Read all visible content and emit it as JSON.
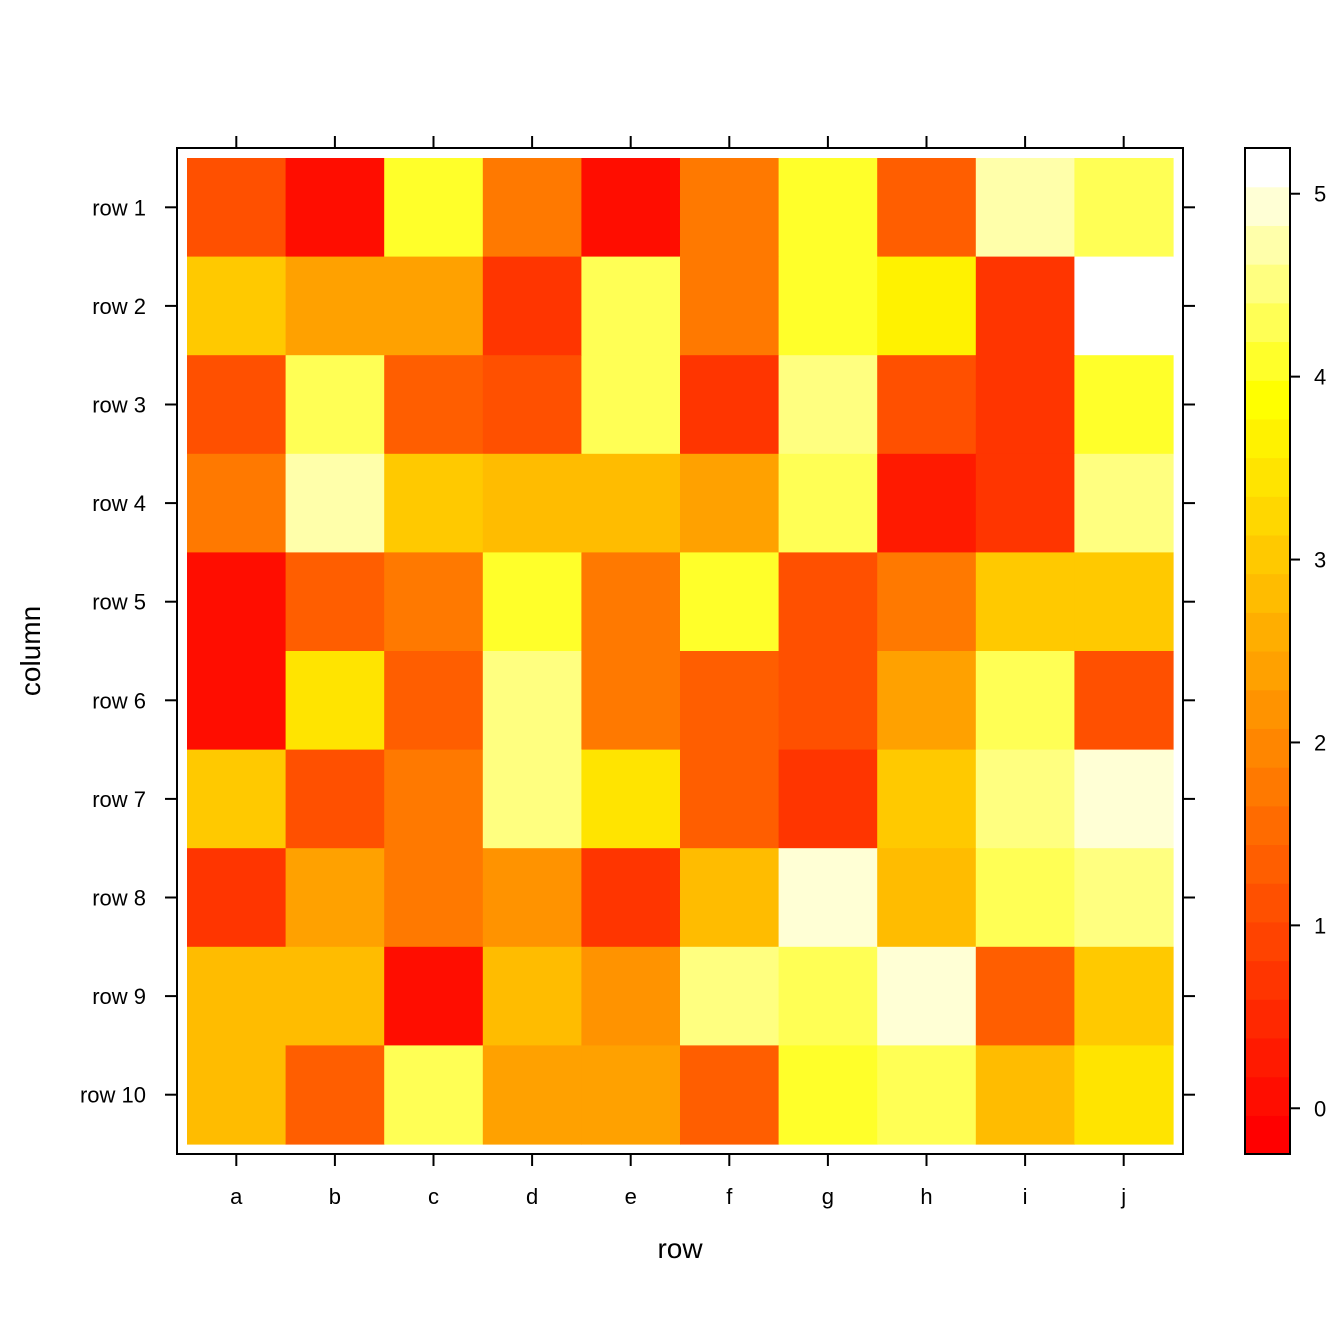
{
  "chart_data": {
    "type": "heatmap",
    "title": "",
    "xlabel": "row",
    "ylabel": "column",
    "x_categories": [
      "a",
      "b",
      "c",
      "d",
      "e",
      "f",
      "g",
      "h",
      "i",
      "j"
    ],
    "y_categories": [
      "row 1",
      "row 2",
      "row 3",
      "row 4",
      "row 5",
      "row 6",
      "row 7",
      "row 8",
      "row 9",
      "row 10"
    ],
    "values": [
      [
        1.1,
        0.1,
        4.0,
        1.8,
        0.1,
        1.8,
        4.0,
        1.4,
        4.7,
        4.3
      ],
      [
        3.1,
        2.4,
        2.4,
        0.7,
        4.3,
        1.8,
        4.0,
        3.6,
        0.6,
        5.2
      ],
      [
        1.2,
        4.3,
        1.4,
        1.1,
        4.3,
        0.6,
        4.6,
        1.1,
        0.6,
        4.0
      ],
      [
        1.8,
        4.8,
        3.1,
        2.8,
        2.8,
        2.4,
        4.3,
        0.2,
        0.6,
        4.6
      ],
      [
        0.1,
        1.4,
        1.8,
        4.0,
        1.8,
        4.0,
        1.1,
        1.8,
        3.1,
        3.1
      ],
      [
        0.1,
        3.4,
        1.4,
        4.6,
        1.8,
        1.4,
        1.1,
        2.4,
        4.3,
        1.1
      ],
      [
        3.1,
        1.1,
        1.8,
        4.6,
        3.4,
        1.4,
        0.6,
        3.1,
        4.6,
        5.0
      ],
      [
        0.6,
        2.4,
        1.8,
        2.1,
        0.6,
        2.8,
        5.0,
        2.8,
        4.3,
        4.6
      ],
      [
        2.8,
        2.8,
        0.1,
        2.8,
        2.1,
        4.6,
        4.3,
        5.0,
        1.4,
        3.1
      ],
      [
        2.8,
        1.4,
        4.3,
        2.4,
        2.4,
        1.4,
        4.0,
        4.3,
        2.8,
        3.4
      ]
    ],
    "zlim": [
      -0.25,
      5.25
    ],
    "colorbar": {
      "ticks": [
        0,
        1,
        2,
        3,
        4,
        5
      ],
      "tick_labels": [
        "0",
        "1",
        "2",
        "3",
        "4",
        "5"
      ],
      "colors": [
        "#FF0000",
        "#FF0D00",
        "#FF1A00",
        "#FF2800",
        "#FF3500",
        "#FF4300",
        "#FF5000",
        "#FF5E00",
        "#FF6B00",
        "#FF7900",
        "#FF8600",
        "#FF9300",
        "#FFA100",
        "#FFAE00",
        "#FFBC00",
        "#FFC900",
        "#FFD700",
        "#FFE400",
        "#FFF200",
        "#FFFF00",
        "#FFFF2A",
        "#FFFF55",
        "#FFFF80",
        "#FFFFAA",
        "#FFFFD5",
        "#FFFFFF"
      ]
    },
    "legend": "right",
    "grid": false
  }
}
